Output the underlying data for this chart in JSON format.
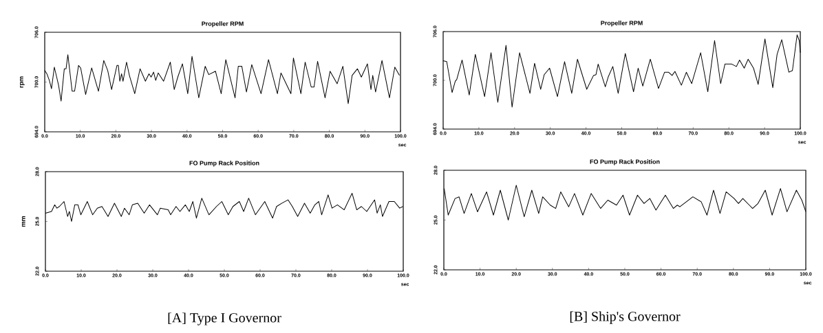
{
  "chart_data": [
    {
      "type": "line",
      "title": "Propeller RPM",
      "ylabel": "rpm",
      "xlabel": "sec",
      "marker": "none",
      "line_style": "solid",
      "grid": false,
      "xlim": [
        0,
        100
      ],
      "ylim": [
        694,
        706
      ],
      "xticks": [
        {
          "value": 0,
          "label": "0.0"
        },
        {
          "value": 10,
          "label": "10.0"
        },
        {
          "value": 20,
          "label": "20.0"
        },
        {
          "value": 30,
          "label": "30.0"
        },
        {
          "value": 40,
          "label": "40.0"
        },
        {
          "value": 50,
          "label": "50.0"
        },
        {
          "value": 60,
          "label": "60.0"
        },
        {
          "value": 70,
          "label": "70.0"
        },
        {
          "value": 80,
          "label": "80.0"
        },
        {
          "value": 90,
          "label": "90.0"
        },
        {
          "value": 100,
          "label": "100.0"
        }
      ],
      "yticks": [
        {
          "value": 694,
          "label": "694.0"
        },
        {
          "value": 700,
          "label": "700.0"
        },
        {
          "value": 706,
          "label": "706.0"
        }
      ],
      "x": [
        0,
        0.6,
        1.3,
        1.9,
        2.7,
        3.9,
        4.6,
        5.5,
        6.0,
        6.5,
        7.7,
        8.4,
        9.5,
        10.1,
        11.5,
        13.2,
        15.1,
        16.6,
        17.7,
        18.8,
        20.3,
        20.7,
        21.1,
        21.6,
        22.0,
        23.0,
        23.8,
        25.3,
        26.8,
        28.3,
        29.3,
        29.9,
        30.6,
        31.2,
        31.9,
        33.4,
        35.3,
        36.4,
        37.4,
        38.7,
        40.2,
        41.4,
        43.3,
        45.1,
        46.1,
        48.0,
        49.6,
        50.9,
        53.5,
        54.4,
        55.4,
        56.7,
        58.2,
        60.8,
        62.9,
        65.4,
        66.4,
        67.4,
        69.2,
        69.9,
        72.0,
        73.2,
        74.9,
        75.7,
        76.7,
        78.8,
        80.2,
        82.2,
        83.8,
        85.3,
        86.4,
        87.9,
        89.0,
        90.7,
        91.7,
        92.2,
        93.0,
        94.8,
        96.9,
        98.4,
        99.7
      ],
      "series": [
        {
          "color": "#000000",
          "values": [
            701.4,
            701.0,
            700.2,
            699.2,
            701.8,
            699.6,
            697.7,
            701.6,
            701.6,
            703.3,
            698.9,
            698.9,
            702.0,
            701.7,
            698.5,
            701.7,
            698.9,
            702.6,
            701.4,
            699.1,
            702.0,
            702.0,
            700.1,
            701.0,
            700.1,
            702.4,
            700.8,
            698.6,
            701.6,
            700.1,
            701.0,
            700.6,
            701.2,
            700.2,
            701.1,
            700.1,
            702.4,
            699.1,
            700.6,
            702.2,
            698.6,
            703.1,
            698.1,
            701.9,
            700.9,
            701.3,
            698.6,
            702.7,
            698.1,
            701.9,
            701.9,
            698.8,
            702.1,
            698.6,
            702.7,
            698.6,
            701.1,
            700.2,
            698.6,
            702.9,
            698.6,
            702.4,
            699.4,
            699.4,
            702.5,
            698.1,
            701.3,
            699.8,
            701.9,
            697.4,
            700.8,
            701.6,
            700.6,
            702.2,
            699.1,
            700.8,
            698.8,
            702.6,
            698.1,
            701.8,
            700.8
          ]
        }
      ]
    },
    {
      "type": "line",
      "title": "FO Pump Rack Position",
      "ylabel": "mm",
      "xlabel": "sec",
      "marker": "none",
      "line_style": "solid",
      "grid": false,
      "annotations": [
        "[A] Type I Governor"
      ],
      "xlim": [
        0,
        100
      ],
      "ylim": [
        22,
        28
      ],
      "xticks": [
        {
          "value": 0,
          "label": "0.0"
        },
        {
          "value": 10,
          "label": "10.0"
        },
        {
          "value": 20,
          "label": "20.0"
        },
        {
          "value": 30,
          "label": "30.0"
        },
        {
          "value": 40,
          "label": "40.0"
        },
        {
          "value": 50,
          "label": "50.0"
        },
        {
          "value": 60,
          "label": "60.0"
        },
        {
          "value": 70,
          "label": "70.0"
        },
        {
          "value": 80,
          "label": "80.0"
        },
        {
          "value": 90,
          "label": "90.0"
        },
        {
          "value": 100,
          "label": "100.0"
        }
      ],
      "yticks": [
        {
          "value": 22,
          "label": "22.0"
        },
        {
          "value": 25,
          "label": "25.0"
        },
        {
          "value": 28,
          "label": "28.0"
        }
      ],
      "x": [
        0,
        1.7,
        2.6,
        3.2,
        3.9,
        5.2,
        6.2,
        6.7,
        7.3,
        8.2,
        9.1,
        9.9,
        11.7,
        13.2,
        14.5,
        15.8,
        17.5,
        19.3,
        21.2,
        22.1,
        23.4,
        24.3,
        25.8,
        27.6,
        29.1,
        31.3,
        32.1,
        34.3,
        35.0,
        36.5,
        37.6,
        39.1,
        40.2,
        41.2,
        42.2,
        43.7,
        45.7,
        47.8,
        49.3,
        51.1,
        52.4,
        54.2,
        55.4,
        56.8,
        58.7,
        61.3,
        63.5,
        64.6,
        66.1,
        67.8,
        69.0,
        70.5,
        72.4,
        74.0,
        75.3,
        76.4,
        77.2,
        79.0,
        80.1,
        81.6,
        83.5,
        85.7,
        87.0,
        88.3,
        89.8,
        92.0,
        92.7,
        93.6,
        94.2,
        96.0,
        97.5,
        99.0,
        99.9
      ],
      "series": [
        {
          "color": "#000000",
          "values": [
            25.5,
            25.6,
            26.0,
            25.8,
            25.9,
            26.2,
            25.3,
            25.6,
            25.0,
            26.0,
            26.0,
            25.4,
            26.2,
            25.4,
            25.8,
            25.9,
            25.3,
            26.1,
            25.3,
            25.8,
            25.4,
            26.0,
            26.1,
            25.5,
            26.0,
            25.4,
            25.8,
            25.7,
            25.4,
            25.9,
            25.6,
            26.0,
            25.6,
            26.2,
            25.2,
            26.4,
            25.4,
            25.9,
            26.2,
            25.4,
            25.9,
            26.2,
            25.6,
            26.4,
            25.4,
            26.2,
            25.2,
            25.9,
            26.1,
            26.3,
            25.9,
            25.3,
            26.1,
            25.5,
            26.0,
            26.2,
            25.4,
            26.6,
            25.8,
            26.0,
            25.7,
            26.7,
            25.7,
            25.9,
            25.6,
            26.3,
            25.5,
            26.0,
            25.3,
            26.2,
            26.2,
            25.8,
            25.9
          ]
        }
      ]
    },
    {
      "type": "line",
      "title": "Propeller RPM",
      "xlabel": "sec",
      "marker": "none",
      "line_style": "solid",
      "grid": false,
      "xlim": [
        0,
        100
      ],
      "ylim": [
        694,
        706
      ],
      "xticks": [
        {
          "value": 0,
          "label": "0.0"
        },
        {
          "value": 10,
          "label": "10.0"
        },
        {
          "value": 20,
          "label": "20.0"
        },
        {
          "value": 30,
          "label": "30.0"
        },
        {
          "value": 40,
          "label": "40.0"
        },
        {
          "value": 50,
          "label": "50.0"
        },
        {
          "value": 60,
          "label": "60.0"
        },
        {
          "value": 70,
          "label": "70.0"
        },
        {
          "value": 80,
          "label": "80.0"
        },
        {
          "value": 90,
          "label": "90.0"
        },
        {
          "value": 100,
          "label": "100.0"
        }
      ],
      "yticks": [
        {
          "value": 694,
          "label": "694.0"
        },
        {
          "value": 700,
          "label": "700.0"
        },
        {
          "value": 706,
          "label": "706.0"
        }
      ],
      "x": [
        0,
        1.0,
        2.5,
        3.4,
        3.8,
        5.3,
        7.3,
        9.0,
        11.6,
        13.4,
        15.3,
        17.6,
        19.3,
        21.4,
        24.3,
        25.6,
        27.3,
        28.3,
        29.8,
        32.0,
        34.0,
        36.0,
        37.6,
        40.2,
        42.1,
        42.8,
        43.4,
        45.4,
        46.2,
        47.5,
        49.0,
        51.0,
        53.3,
        54.6,
        55.9,
        58.0,
        60.3,
        62.0,
        63.1,
        64.1,
        64.9,
        66.7,
        68.1,
        69.6,
        72.1,
        74.1,
        76.0,
        77.7,
        78.9,
        80.8,
        82.1,
        83.0,
        84.3,
        85.4,
        86.9,
        88.2,
        90.1,
        92.3,
        93.5,
        94.8,
        96.8,
        97.8,
        99.1,
        99.7,
        100.0
      ],
      "series": [
        {
          "color": "#000000",
          "values": [
            702.4,
            702.3,
            698.5,
            699.9,
            700.1,
            702.5,
            698.2,
            703.2,
            698.0,
            703.4,
            697.3,
            704.3,
            696.7,
            703.4,
            698.4,
            702.1,
            698.9,
            700.7,
            701.5,
            698.0,
            702.3,
            698.4,
            702.6,
            698.9,
            700.6,
            700.7,
            702.0,
            699.2,
            700.4,
            701.7,
            698.4,
            703.3,
            698.6,
            701.5,
            699.3,
            702.6,
            699.0,
            701.0,
            701.0,
            700.6,
            701.1,
            699.4,
            701.0,
            699.6,
            703.4,
            698.6,
            704.9,
            699.6,
            702.0,
            702.0,
            701.7,
            702.5,
            701.5,
            702.6,
            701.5,
            699.5,
            705.1,
            699.1,
            703.2,
            705.0,
            701.0,
            701.2,
            705.6,
            704.9,
            703.4
          ]
        }
      ]
    },
    {
      "type": "line",
      "title": "FO Pump Rack Position",
      "xlabel": "sec",
      "marker": "none",
      "line_style": "solid",
      "grid": false,
      "annotations": [
        "[B] Ship's Governor"
      ],
      "xlim": [
        0,
        100
      ],
      "ylim": [
        22,
        28
      ],
      "xticks": [
        {
          "value": 0,
          "label": "0.0"
        },
        {
          "value": 10,
          "label": "10.0"
        },
        {
          "value": 20,
          "label": "20.0"
        },
        {
          "value": 30,
          "label": "30.0"
        },
        {
          "value": 40,
          "label": "40.0"
        },
        {
          "value": 50,
          "label": "50.0"
        },
        {
          "value": 60,
          "label": "60.0"
        },
        {
          "value": 70,
          "label": "70.0"
        },
        {
          "value": 80,
          "label": "80.0"
        },
        {
          "value": 90,
          "label": "90.0"
        },
        {
          "value": 100,
          "label": "100.0"
        }
      ],
      "yticks": [
        {
          "value": 22,
          "label": "22.0"
        },
        {
          "value": 25,
          "label": "25.0"
        },
        {
          "value": 28,
          "label": "28.0"
        }
      ],
      "x": [
        0.1,
        1.2,
        3.1,
        4.2,
        5.6,
        7.6,
        9.3,
        11.8,
        13.7,
        15.6,
        17.8,
        20.0,
        22.2,
        24.3,
        26.2,
        27.3,
        29.4,
        30.9,
        32.3,
        34.5,
        36.1,
        38.4,
        40.7,
        43.3,
        45.3,
        47.7,
        49.5,
        51.3,
        53.5,
        55.3,
        56.9,
        58.6,
        61.2,
        63.4,
        64.5,
        65.2,
        68.8,
        71.1,
        72.7,
        74.5,
        76.3,
        78.0,
        80.2,
        81.4,
        82.6,
        84.4,
        85.3,
        86.8,
        88.8,
        90.7,
        93.0,
        94.8,
        97.4,
        98.9,
        100.0
      ],
      "series": [
        {
          "color": "#000000",
          "values": [
            26.9,
            25.3,
            26.3,
            26.4,
            25.4,
            26.6,
            25.5,
            26.7,
            25.3,
            26.8,
            25.0,
            27.1,
            25.2,
            26.8,
            25.4,
            26.4,
            25.9,
            25.7,
            26.7,
            25.8,
            26.6,
            25.3,
            26.6,
            25.7,
            26.2,
            25.9,
            26.5,
            25.3,
            26.5,
            26.0,
            26.3,
            25.6,
            26.5,
            25.7,
            25.9,
            25.8,
            26.4,
            26.1,
            25.3,
            26.8,
            25.4,
            26.7,
            26.3,
            26.0,
            26.3,
            25.9,
            25.7,
            26.0,
            26.8,
            25.3,
            26.9,
            25.5,
            26.8,
            26.2,
            25.5
          ]
        }
      ]
    }
  ]
}
